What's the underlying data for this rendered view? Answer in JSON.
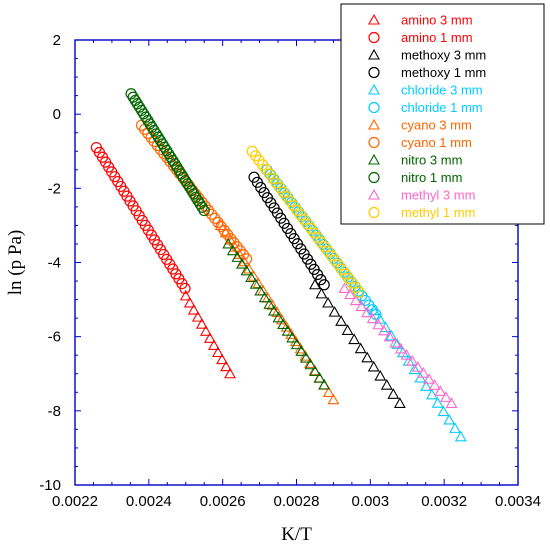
{
  "chart_data": {
    "type": "scatter",
    "title": "",
    "xlabel": "K/T",
    "ylabel": "ln (p Pa)",
    "xlim": [
      0.0022,
      0.0034
    ],
    "ylim": [
      -10,
      2
    ],
    "x_ticks": [
      0.0022,
      0.0024,
      0.0026,
      0.0028,
      0.003,
      0.0032,
      0.0034
    ],
    "y_ticks": [
      2,
      0,
      -2,
      -4,
      -6,
      -8,
      -10
    ],
    "x_tick_labels": [
      "0.0022",
      "0.0024",
      "0.0026",
      "0.0028",
      "0.003",
      "0.0032",
      "0.0034"
    ],
    "y_tick_labels": [
      "2",
      "0",
      "-2",
      "-4",
      "-6",
      "-8",
      "-10"
    ],
    "grid": false,
    "legend_position": "top-right",
    "series": [
      {
        "name": "amino 3 mm",
        "marker": "triangle",
        "color": "#ff0000",
        "x_range": [
          0.0025,
          0.00262
        ],
        "y_range": [
          -4.9,
          -7.0
        ],
        "count": 12
      },
      {
        "name": "amino 1 mm",
        "marker": "circle",
        "color": "#ff0000",
        "x_range": [
          0.002258,
          0.002498
        ],
        "y_range": [
          -0.9,
          -4.7
        ],
        "count": 30
      },
      {
        "name": "methoxy 3 mm",
        "marker": "triangle",
        "color": "#000000",
        "x_range": [
          0.00285,
          0.00308
        ],
        "y_range": [
          -4.6,
          -7.8
        ],
        "count": 14
      },
      {
        "name": "methoxy 1 mm",
        "marker": "circle",
        "color": "#000000",
        "x_range": [
          0.002685,
          0.002875
        ],
        "y_range": [
          -1.7,
          -4.6
        ],
        "count": 22
      },
      {
        "name": "chloride 3 mm",
        "marker": "triangle",
        "color": "#00ccff",
        "x_range": [
          0.00301,
          0.003245
        ],
        "y_range": [
          -5.3,
          -8.7
        ],
        "count": 16
      },
      {
        "name": "chloride 1 mm",
        "marker": "circle",
        "color": "#00ccff",
        "x_range": [
          0.00272,
          0.003015
        ],
        "y_range": [
          -1.5,
          -5.4
        ],
        "count": 32
      },
      {
        "name": "cyano 3 mm",
        "marker": "triangle",
        "color": "#ff6600",
        "x_range": [
          0.002595,
          0.0029
        ],
        "y_range": [
          -3.0,
          -7.7
        ],
        "count": 25
      },
      {
        "name": "cyano 1 mm",
        "marker": "circle",
        "color": "#ff6600",
        "x_range": [
          0.00238,
          0.002665
        ],
        "y_range": [
          -0.3,
          -3.9
        ],
        "count": 34
      },
      {
        "name": "nitro 3 mm",
        "marker": "triangle",
        "color": "#006600",
        "x_range": [
          0.002615,
          0.002875
        ],
        "y_range": [
          -3.5,
          -7.3
        ],
        "count": 22
      },
      {
        "name": "nitro 1 mm",
        "marker": "circle",
        "color": "#006600",
        "x_range": [
          0.002352,
          0.00255
        ],
        "y_range": [
          0.55,
          -2.6
        ],
        "count": 36
      },
      {
        "name": "methyl 3 mm",
        "marker": "triangle",
        "color": "#ff66cc",
        "x_range": [
          0.00293,
          0.00322
        ],
        "y_range": [
          -4.7,
          -7.8
        ],
        "count": 20
      },
      {
        "name": "methyl 1 mm",
        "marker": "circle",
        "color": "#ffcc00",
        "x_range": [
          0.00268,
          0.00297
        ],
        "y_range": [
          -1.0,
          -4.8
        ],
        "count": 32
      }
    ]
  }
}
